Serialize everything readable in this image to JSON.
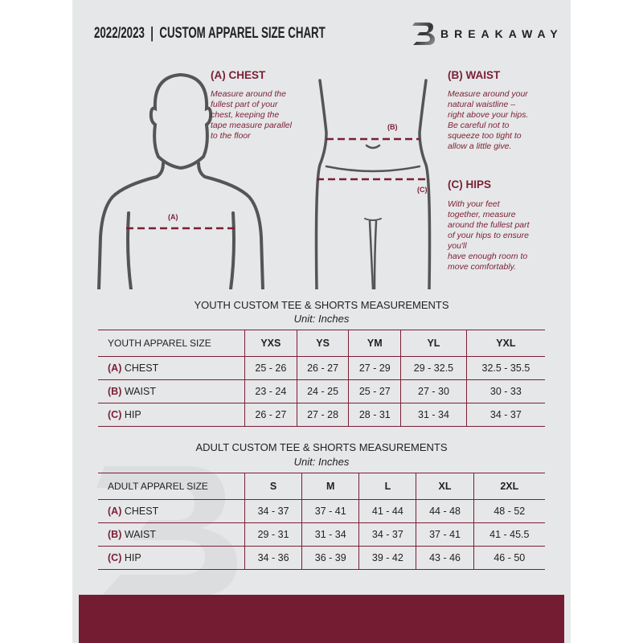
{
  "header": {
    "title": "2022/2023  |  CUSTOM APPAREL SIZE CHART",
    "brand": "BREAKAWAY",
    "logo_letter": "B"
  },
  "colors": {
    "accent": "#7a1f35",
    "footer": "#731c32",
    "page": "#e6e7e8"
  },
  "chest": {
    "title": "(A) CHEST",
    "marker": "(A)",
    "lines": [
      "Measure around the",
      "fullest part of your",
      "chest, keeping the",
      "tape measure parallel",
      "to the floor"
    ]
  },
  "waist": {
    "title": "(B) WAIST",
    "marker": "(B)",
    "lines": [
      "Measure around your",
      "natural waistline –",
      "right above your hips.",
      "Be careful not to",
      "squeeze too tight to",
      "allow a little give."
    ]
  },
  "hips": {
    "title": "(C) HIPS",
    "marker": "(C)",
    "lines": [
      "With your feet",
      "together, measure",
      "around the fullest part",
      "of your hips to ensure",
      "you'll",
      "have enough room to",
      "move comfortably."
    ]
  },
  "youth": {
    "title": "YOUTH CUSTOM TEE & SHORTS MEASUREMENTS",
    "unit": "Unit: Inches",
    "size_label": "YOUTH APPAREL SIZE",
    "sizes": [
      "YXS",
      "YS",
      "YM",
      "YL",
      "YXL"
    ],
    "rows": [
      {
        "code": "(A)",
        "name": "CHEST",
        "values": [
          "25 - 26",
          "26 - 27",
          "27 - 29",
          "29 - 32.5",
          "32.5 - 35.5"
        ]
      },
      {
        "code": "(B)",
        "name": "WAIST",
        "values": [
          "23 - 24",
          "24 - 25",
          "25 - 27",
          "27 - 30",
          "30 - 33"
        ]
      },
      {
        "code": "(C)",
        "name": "HIP",
        "values": [
          "26 - 27",
          "27 - 28",
          "28 - 31",
          "31 - 34",
          "34 - 37"
        ]
      }
    ]
  },
  "adult": {
    "title": "ADULT CUSTOM TEE & SHORTS MEASUREMENTS",
    "unit": "Unit: Inches",
    "size_label": "ADULT APPAREL SIZE",
    "sizes": [
      "S",
      "M",
      "L",
      "XL",
      "2XL"
    ],
    "rows": [
      {
        "code": "(A)",
        "name": "CHEST",
        "values": [
          "34 - 37",
          "37 - 41",
          "41 - 44",
          "44 - 48",
          "48 - 52"
        ]
      },
      {
        "code": "(B)",
        "name": "WAIST",
        "values": [
          "29 - 31",
          "31 - 34",
          "34 - 37",
          "37 - 41",
          "41 - 45.5"
        ]
      },
      {
        "code": "(C)",
        "name": "HIP",
        "values": [
          "34 - 36",
          "36 - 39",
          "39 - 42",
          "43 - 46",
          "46 - 50"
        ]
      }
    ]
  }
}
